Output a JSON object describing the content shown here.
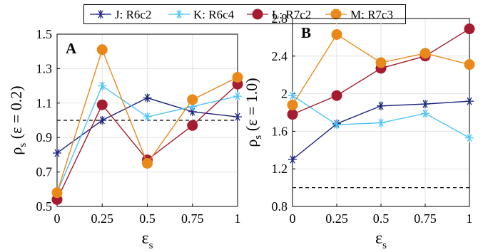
{
  "legend": [
    {
      "label": "J: R6c2",
      "color": "#1a237e",
      "marker": "star"
    },
    {
      "label": "K: R6c4",
      "color": "#4fc3f7",
      "marker": "star"
    },
    {
      "label": "L: R7c2",
      "color": "#a51c30",
      "marker": "circle"
    },
    {
      "label": "M: R7c3",
      "color": "#e8891a",
      "marker": "circle"
    }
  ],
  "chart_data": [
    {
      "type": "line",
      "panel_label": "A",
      "xlabel_symbol": "ε",
      "xlabel_sub": "s",
      "ylabel_symbol": "ρ",
      "ylabel_sub": "s",
      "ylabel_tail": "(ε = 0.2)",
      "x": [
        0,
        0.25,
        0.5,
        0.75,
        1
      ],
      "x_ticks": [
        "0",
        "0.25",
        "0.5",
        "0.75",
        "1"
      ],
      "xlim": [
        0,
        1
      ],
      "ylim": [
        0.5,
        1.5
      ],
      "y_ticks": [
        "0.5",
        "0.7",
        "0.9",
        "1.1",
        "1.3",
        "1.5"
      ],
      "grid": true,
      "reference_line": 1.0,
      "series": [
        {
          "name": "J: R6c2",
          "color": "#1a237e",
          "marker": "star",
          "values": [
            0.81,
            1.0,
            1.13,
            1.05,
            1.02
          ]
        },
        {
          "name": "K: R6c4",
          "color": "#4fc3f7",
          "marker": "star",
          "values": [
            0.58,
            1.2,
            1.02,
            1.08,
            1.14
          ]
        },
        {
          "name": "L: R7c2",
          "color": "#a51c30",
          "marker": "circle",
          "values": [
            0.54,
            1.09,
            0.77,
            0.97,
            1.21
          ]
        },
        {
          "name": "M: R7c3",
          "color": "#e8891a",
          "marker": "circle",
          "values": [
            0.58,
            1.41,
            0.75,
            1.12,
            1.25
          ]
        }
      ]
    },
    {
      "type": "line",
      "panel_label": "B",
      "xlabel_symbol": "ε",
      "xlabel_sub": "s",
      "ylabel_symbol": "ρ",
      "ylabel_sub": "s",
      "ylabel_tail": "(ε = 1.0)",
      "x": [
        0,
        0.25,
        0.5,
        0.75,
        1
      ],
      "x_ticks": [
        "0",
        "0.25",
        "0.5",
        "0.75",
        "1"
      ],
      "xlim": [
        0,
        1
      ],
      "ylim": [
        0.8,
        2.8
      ],
      "y_ticks": [
        "0.8",
        "1.2",
        "1.6",
        "2",
        "2.4",
        "2.8"
      ],
      "grid": true,
      "reference_line": 1.0,
      "series": [
        {
          "name": "J: R6c2",
          "color": "#1a237e",
          "marker": "star",
          "values": [
            1.3,
            1.68,
            1.87,
            1.89,
            1.92
          ]
        },
        {
          "name": "K: R6c4",
          "color": "#4fc3f7",
          "marker": "star",
          "values": [
            1.98,
            1.67,
            1.69,
            1.79,
            1.53
          ]
        },
        {
          "name": "L: R7c2",
          "color": "#a51c30",
          "marker": "circle",
          "values": [
            1.78,
            1.98,
            2.27,
            2.4,
            2.69
          ]
        },
        {
          "name": "M: R7c3",
          "color": "#e8891a",
          "marker": "circle",
          "values": [
            1.88,
            2.63,
            2.33,
            2.43,
            2.31
          ]
        }
      ]
    }
  ]
}
